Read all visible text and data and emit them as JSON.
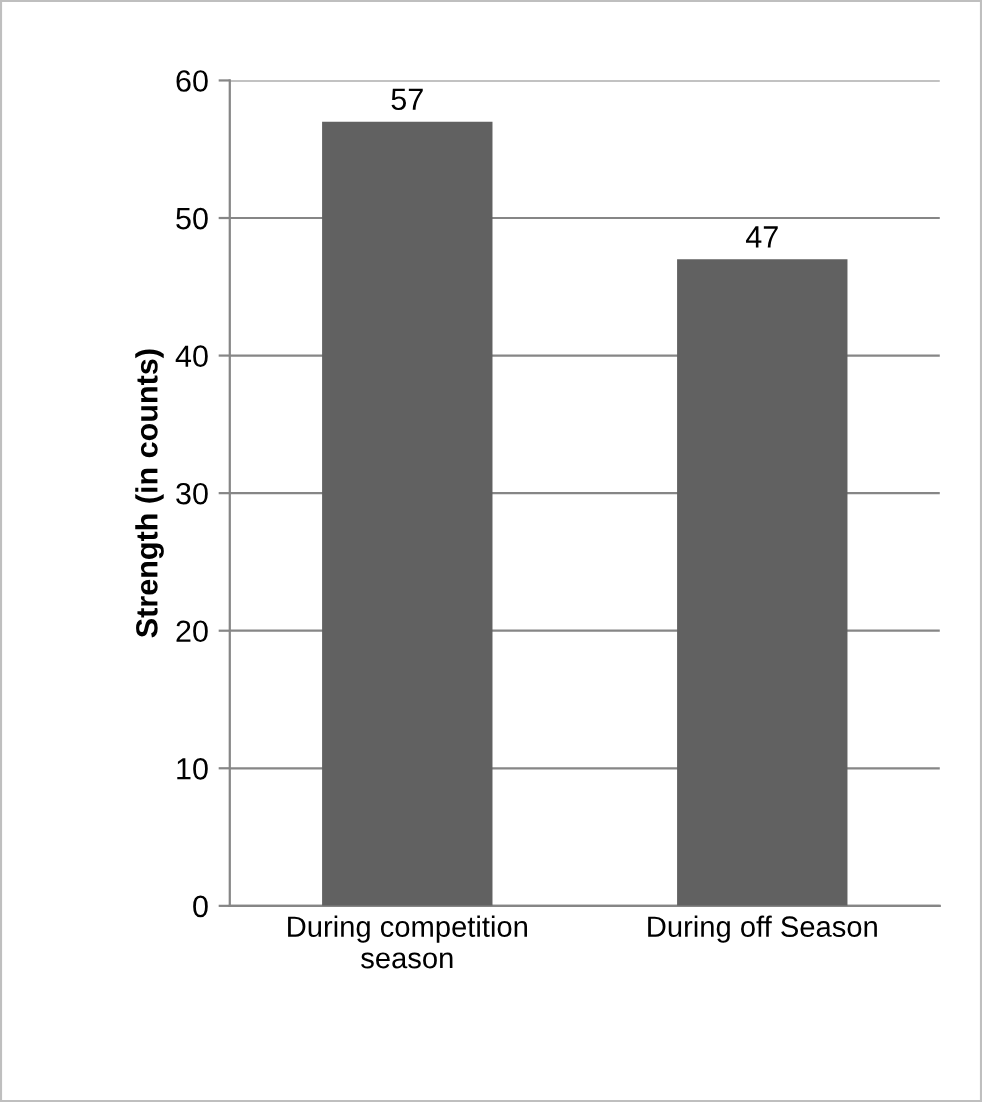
{
  "chart_data": {
    "type": "bar",
    "ylabel": "Strength (in counts)",
    "categories": [
      "During competition\nseason",
      "During off Season"
    ],
    "values": [
      57,
      47
    ],
    "color": "#616161",
    "ylim": [
      0,
      60
    ],
    "yticks": [
      0,
      10,
      20,
      30,
      40,
      50,
      60
    ],
    "grid": "y",
    "data_labels": true,
    "legend": false
  }
}
